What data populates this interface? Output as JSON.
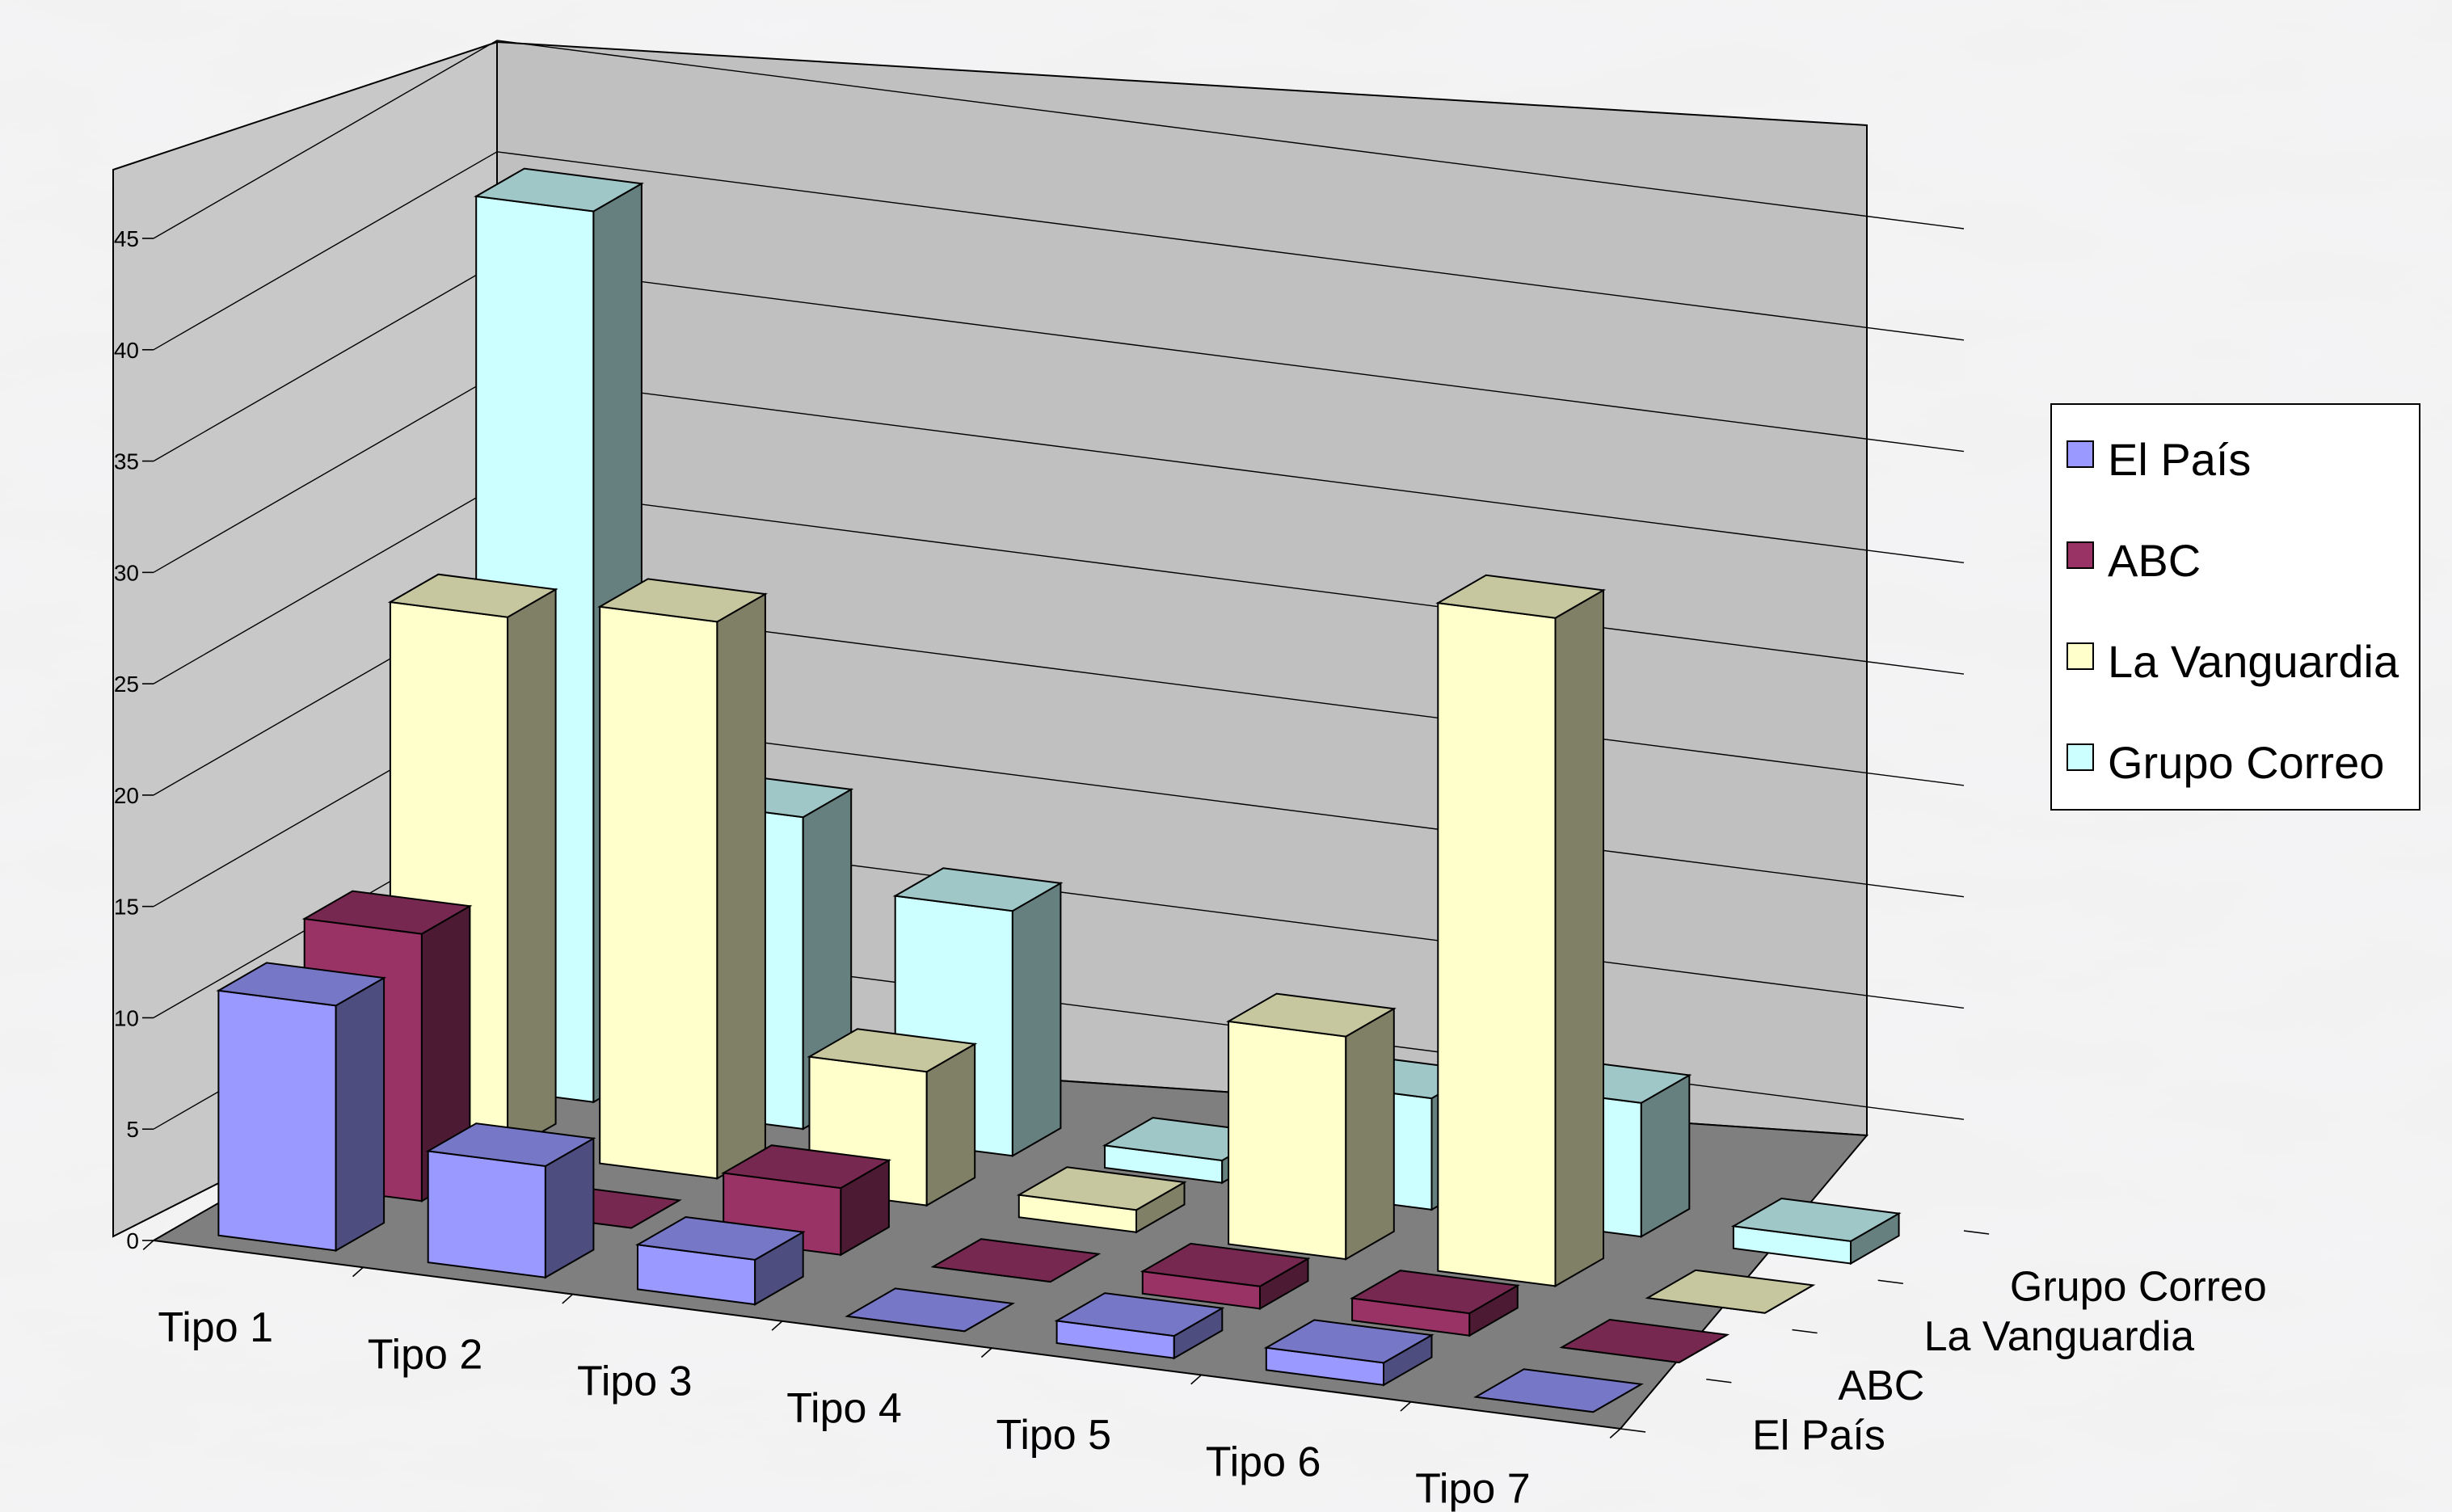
{
  "chart_data": {
    "type": "bar",
    "variant": "3d-column",
    "title": "",
    "xlabel": "",
    "ylabel": "",
    "ylim": [
      0,
      45
    ],
    "yticks": [
      0,
      5,
      10,
      15,
      20,
      25,
      30,
      35,
      40,
      45
    ],
    "grid": true,
    "legend_position": "right",
    "categories": [
      "Tipo 1",
      "Tipo 2",
      "Tipo 3",
      "Tipo 4",
      "Tipo 5",
      "Tipo 6",
      "Tipo 7"
    ],
    "series": [
      {
        "name": "El País",
        "color": "#9999ff",
        "values": [
          11,
          5,
          2,
          0,
          1,
          1,
          0
        ]
      },
      {
        "name": "ABC",
        "color": "#993366",
        "values": [
          12,
          0,
          3,
          0,
          1,
          1,
          0
        ]
      },
      {
        "name": "La Vanguardia",
        "color": "#ffffcc",
        "values": [
          24,
          25,
          6,
          1,
          10,
          30,
          0
        ]
      },
      {
        "name": "Grupo Correo",
        "color": "#ccffff",
        "values": [
          40,
          14,
          11,
          1,
          5,
          6,
          1
        ]
      }
    ]
  }
}
